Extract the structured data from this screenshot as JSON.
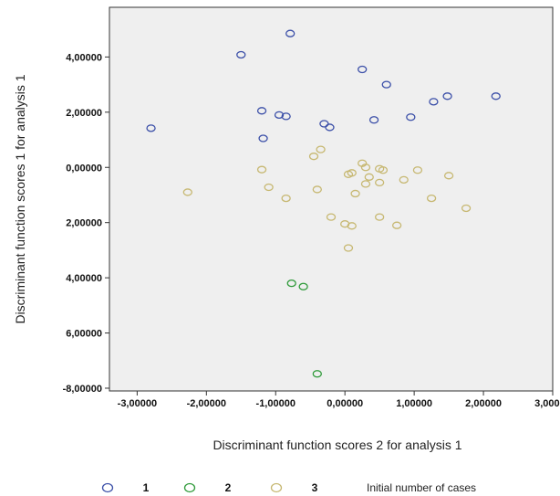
{
  "chart_data": {
    "type": "scatter",
    "xlabel": "Discriminant function scores 2 for analysis 1",
    "ylabel": "Discriminant function scores 1 for analysis 1",
    "xlim": [
      -3.4,
      3.0
    ],
    "ylim": [
      -8.1,
      5.8
    ],
    "grid": false,
    "legend_position": "bottom",
    "x_ticks": [
      {
        "value": -3,
        "label": "-3,00000"
      },
      {
        "value": -2,
        "label": "-2,00000"
      },
      {
        "value": -1,
        "label": "-1,00000"
      },
      {
        "value": 0,
        "label": "0,00000"
      },
      {
        "value": 1,
        "label": "1,00000"
      },
      {
        "value": 2,
        "label": "2,00000"
      },
      {
        "value": 3,
        "label": "3,00000"
      }
    ],
    "y_ticks": [
      {
        "value": 4,
        "label": "4,00000"
      },
      {
        "value": 2,
        "label": "2,00000"
      },
      {
        "value": 0,
        "label": "0,00000"
      },
      {
        "value": -2,
        "label": "2,00000"
      },
      {
        "value": -4,
        "label": "4,00000"
      },
      {
        "value": -6,
        "label": "6,00000"
      },
      {
        "value": -8,
        "label": "-8,00000"
      }
    ],
    "legend_title": "Initial number of cases",
    "series": [
      {
        "name": "1",
        "color": "#3b4fa8",
        "points": [
          [
            -0.79,
            4.85
          ],
          [
            -1.5,
            4.08
          ],
          [
            0.25,
            3.55
          ],
          [
            0.6,
            3.0
          ],
          [
            -2.8,
            1.42
          ],
          [
            -1.2,
            2.05
          ],
          [
            -0.95,
            1.9
          ],
          [
            -0.85,
            1.85
          ],
          [
            -0.3,
            1.58
          ],
          [
            -0.22,
            1.45
          ],
          [
            -1.18,
            1.05
          ],
          [
            0.42,
            1.72
          ],
          [
            0.95,
            1.82
          ],
          [
            1.28,
            2.38
          ],
          [
            1.48,
            2.58
          ],
          [
            2.18,
            2.58
          ]
        ]
      },
      {
        "name": "2",
        "color": "#2f9a3a",
        "points": [
          [
            -0.77,
            -4.2
          ],
          [
            -0.6,
            -4.32
          ],
          [
            -0.4,
            -7.48
          ]
        ]
      },
      {
        "name": "3",
        "color": "#c7b872",
        "points": [
          [
            -2.27,
            -0.9
          ],
          [
            -1.2,
            -0.08
          ],
          [
            -1.1,
            -0.72
          ],
          [
            -0.85,
            -1.12
          ],
          [
            -0.4,
            -0.8
          ],
          [
            -0.45,
            0.4
          ],
          [
            -0.35,
            0.65
          ],
          [
            -0.2,
            -1.8
          ],
          [
            0.0,
            -2.05
          ],
          [
            0.1,
            -2.12
          ],
          [
            0.05,
            -2.92
          ],
          [
            0.05,
            -0.25
          ],
          [
            0.1,
            -0.2
          ],
          [
            0.15,
            -0.95
          ],
          [
            0.25,
            0.15
          ],
          [
            0.3,
            0.0
          ],
          [
            0.3,
            -0.6
          ],
          [
            0.35,
            -0.35
          ],
          [
            0.5,
            -0.05
          ],
          [
            0.5,
            -0.55
          ],
          [
            0.55,
            -0.1
          ],
          [
            0.5,
            -1.8
          ],
          [
            0.75,
            -2.1
          ],
          [
            0.85,
            -0.45
          ],
          [
            1.05,
            -0.1
          ],
          [
            1.25,
            -1.12
          ],
          [
            1.5,
            -0.3
          ],
          [
            1.75,
            -1.48
          ]
        ]
      }
    ]
  }
}
